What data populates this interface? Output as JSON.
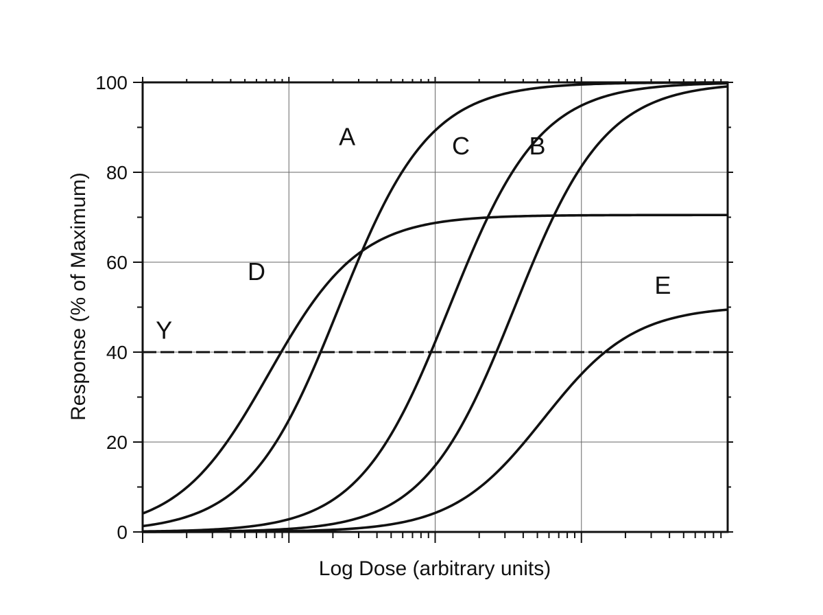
{
  "chart_data": {
    "type": "line",
    "title": "",
    "xlabel": "Log Dose (arbitrary units)",
    "ylabel": "Response (% of Maximum)",
    "x_scale": "log",
    "xlim": [
      1,
      10000
    ],
    "ylim": [
      0,
      100
    ],
    "x_tick_labels_shown": false,
    "y_ticks": [
      0,
      20,
      40,
      60,
      80,
      100
    ],
    "y_tick_labels": [
      "0",
      "20",
      "40",
      "60",
      "80",
      "100"
    ],
    "grid": true,
    "legend": "none",
    "series": [
      {
        "name": "A",
        "max": 100,
        "ec50": 22,
        "hill": 1.4
      },
      {
        "name": "B",
        "max": 100,
        "ec50": 350,
        "hill": 1.4
      },
      {
        "name": "C",
        "max": 100,
        "ec50": 125,
        "hill": 1.4
      },
      {
        "name": "D",
        "max": 70.5,
        "ec50": 7.3,
        "hill": 1.4
      },
      {
        "name": "E",
        "max": 50.3,
        "ec50": 550,
        "hill": 1.4
      }
    ],
    "reference_line": {
      "name": "Y",
      "y": 40,
      "style": "dashed"
    },
    "annotations": [
      {
        "text": "A",
        "x": 25,
        "y": 86
      },
      {
        "text": "C",
        "x": 150,
        "y": 84
      },
      {
        "text": "B",
        "x": 500,
        "y": 84
      },
      {
        "text": "D",
        "x": 6,
        "y": 56
      },
      {
        "text": "E",
        "x": 3600,
        "y": 53
      },
      {
        "text": "Y",
        "x": 1.4,
        "y": 43
      }
    ]
  }
}
